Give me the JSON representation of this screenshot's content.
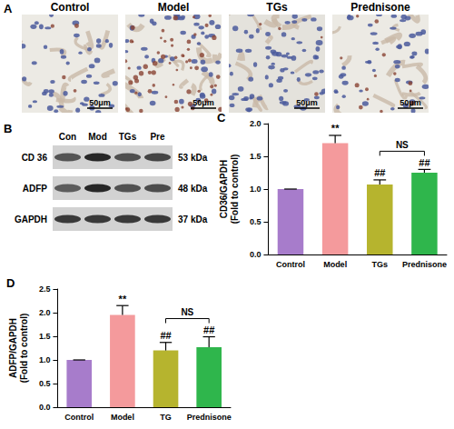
{
  "panel_a": {
    "panel_label": "A",
    "images": [
      {
        "title": "Control",
        "scale_bar": "50μm"
      },
      {
        "title": "Model",
        "scale_bar": "50μm"
      },
      {
        "title": "TGs",
        "scale_bar": "50μm"
      },
      {
        "title": "Prednisone",
        "scale_bar": "50μm"
      }
    ]
  },
  "panel_b": {
    "panel_label": "B",
    "lanes": [
      "Con",
      "Mod",
      "TGs",
      "Pre"
    ],
    "rows": [
      {
        "name": "CD 36",
        "size": "53 kDa"
      },
      {
        "name": "ADFP",
        "size": "48 kDa"
      },
      {
        "name": "GAPDH",
        "size": "37 kDa"
      }
    ]
  },
  "chart_data": [
    {
      "panel_label": "C",
      "type": "bar",
      "categories": [
        "Control",
        "Model",
        "TGs",
        "Prednisone"
      ],
      "values": [
        1.0,
        1.7,
        1.07,
        1.25
      ],
      "errors": [
        0,
        0.12,
        0.07,
        0.05
      ],
      "colors": [
        "#a77ccb",
        "#f49a9c",
        "#b6b42e",
        "#2fb64c"
      ],
      "ylabel": [
        "CD36/GAPDH",
        "(Fold to control)"
      ],
      "ylim": [
        0,
        2
      ],
      "yticks": [
        {
          "value": 0,
          "label": "0.0"
        },
        {
          "value": 0.5,
          "label": "0.5"
        },
        {
          "value": 1,
          "label": "1.0"
        },
        {
          "value": 1.5,
          "label": "1.5"
        },
        {
          "value": 2,
          "label": "2.0"
        }
      ],
      "grid": false,
      "annotations": [
        {
          "text": "**",
          "category": "Model"
        },
        {
          "text": "##",
          "category": "TGs"
        },
        {
          "text": "##",
          "category": "Prednisone"
        }
      ],
      "brackets": [
        {
          "text": "NS",
          "from": "TGs",
          "to": "Prednisone"
        }
      ]
    },
    {
      "panel_label": "D",
      "type": "bar",
      "categories": [
        "Control",
        "Model",
        "TG",
        "Prednisone"
      ],
      "values": [
        1.0,
        1.95,
        1.2,
        1.27
      ],
      "errors": [
        0,
        0.2,
        0.17,
        0.22
      ],
      "colors": [
        "#a77ccb",
        "#f49a9c",
        "#b6b42e",
        "#2fb64c"
      ],
      "ylabel": [
        "ADFP/GAPDH",
        "(Fold to control)"
      ],
      "ylim": [
        0,
        2.5
      ],
      "yticks": [
        {
          "value": 0,
          "label": "0.0"
        },
        {
          "value": 0.5,
          "label": "0.5"
        },
        {
          "value": 1,
          "label": "1.0"
        },
        {
          "value": 1.5,
          "label": "1.5"
        },
        {
          "value": 2,
          "label": "2.0"
        },
        {
          "value": 2.5,
          "label": "2.5"
        }
      ],
      "grid": false,
      "annotations": [
        {
          "text": "**",
          "category": "Model"
        },
        {
          "text": "##",
          "category": "TG"
        },
        {
          "text": "##",
          "category": "Prednisone"
        }
      ],
      "brackets": [
        {
          "text": "NS",
          "from": "TG",
          "to": "Prednisone"
        }
      ]
    }
  ]
}
